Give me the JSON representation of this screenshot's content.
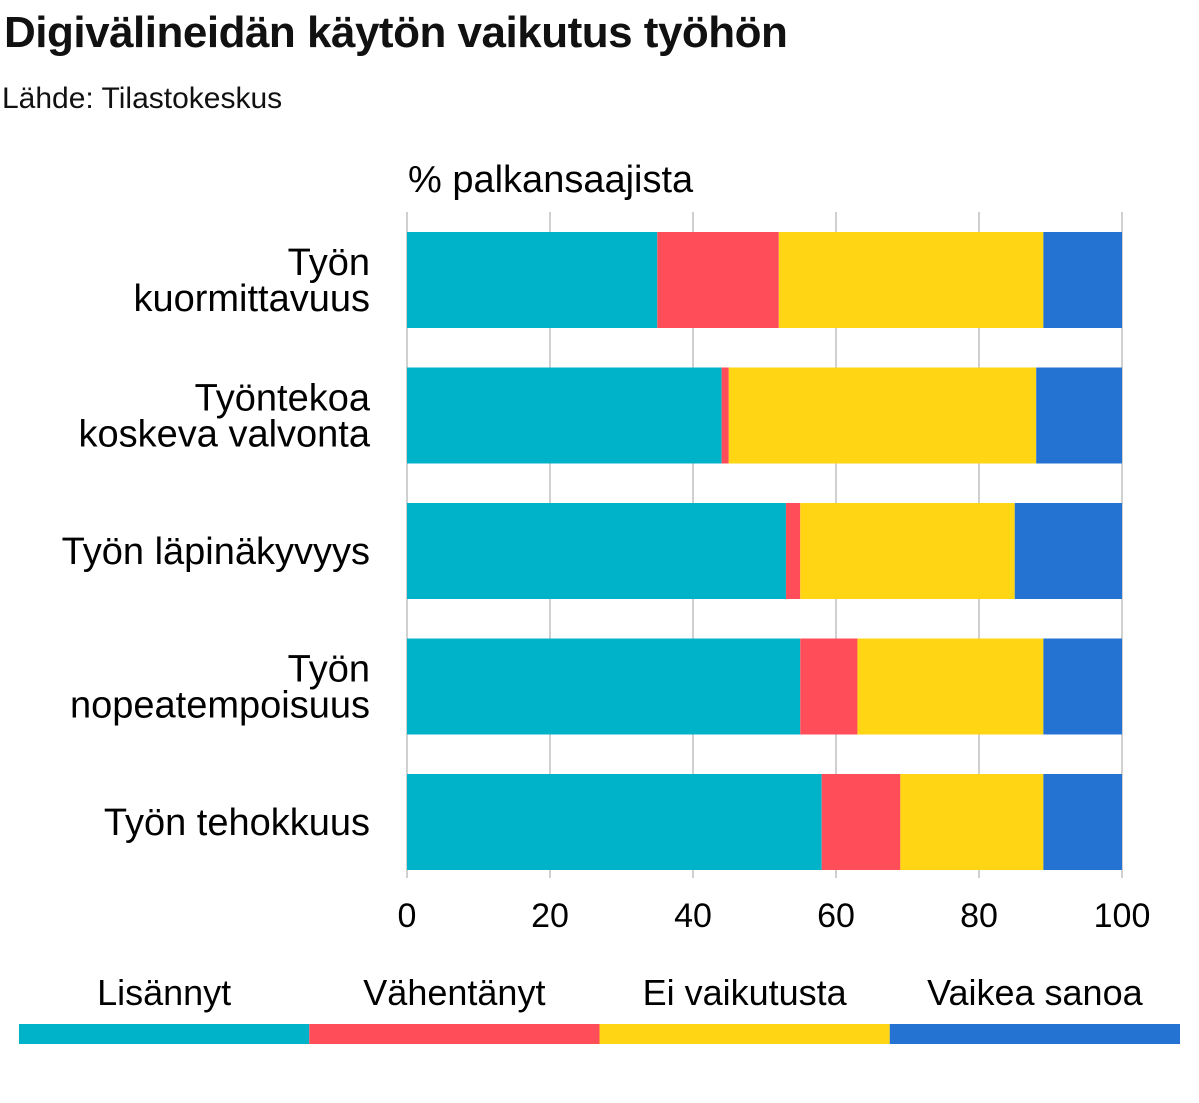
{
  "title": "Digivälineidän käytön vaikutus työhön",
  "source": "Lähde: Tilastokeskus",
  "chart_data": {
    "type": "bar",
    "orientation": "horizontal",
    "stacked": true,
    "unit_label": "% palkansaajista",
    "categories": [
      [
        "Työn",
        "kuormittavuus"
      ],
      [
        "Työntekoa",
        "koskeva valvonta"
      ],
      [
        "Työn läpinäkyvyys"
      ],
      [
        "Työn",
        "nopeatempoisuus"
      ],
      [
        "Työn tehokkuus"
      ]
    ],
    "series": [
      {
        "name": "Lisännyt",
        "color": "#00B3C9",
        "values": [
          35,
          44,
          53,
          55,
          58
        ]
      },
      {
        "name": "Vähentänyt",
        "color": "#FF4D5A",
        "values": [
          17,
          1,
          2,
          8,
          11
        ]
      },
      {
        "name": "Ei vaikutusta",
        "color": "#FFD514",
        "values": [
          37,
          43,
          30,
          26,
          20
        ]
      },
      {
        "name": "Vaikea sanoa",
        "color": "#2473D2",
        "values": [
          11,
          12,
          15,
          11,
          11
        ]
      }
    ],
    "xlim": [
      0,
      100
    ],
    "xticks": [
      "0",
      "20",
      "40",
      "60",
      "80",
      "100"
    ],
    "grid": true,
    "legend_position": "bottom"
  }
}
